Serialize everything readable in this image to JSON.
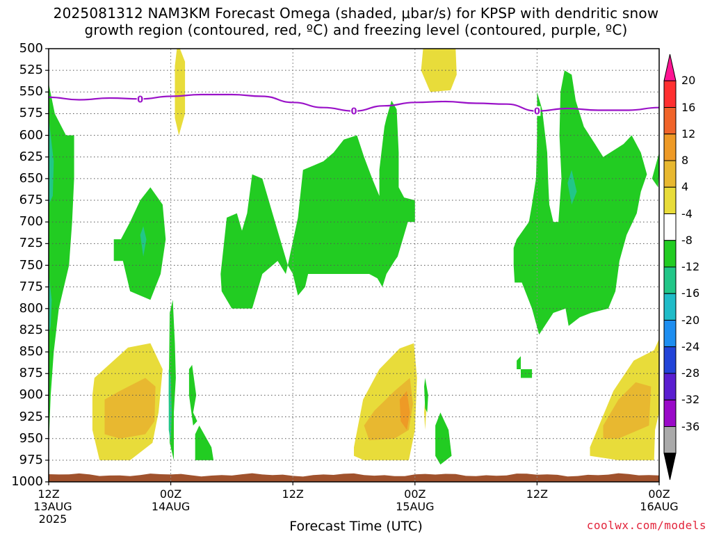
{
  "title_line1": "2025081312 NAM3KM Forecast Omega (shaded, μbar/s) for KPSP with dendritic snow",
  "title_line2": "growth region (contoured, red, ºC) and freezing level (contoured, purple, ºC)",
  "x_axis_label": "Forecast Time (UTC)",
  "credit": "coolwx.com/models",
  "freezing_level_label": "0",
  "chart_data": {
    "type": "heatmap",
    "x_ticks": [
      {
        "hour": 0,
        "line1": "12Z",
        "line2": "13AUG",
        "line3": "2025"
      },
      {
        "hour": 12,
        "line1": "00Z",
        "line2": "14AUG",
        "line3": ""
      },
      {
        "hour": 24,
        "line1": "12Z",
        "line2": "",
        "line3": ""
      },
      {
        "hour": 36,
        "line1": "00Z",
        "line2": "15AUG",
        "line3": ""
      },
      {
        "hour": 48,
        "line1": "12Z",
        "line2": "",
        "line3": ""
      },
      {
        "hour": 60,
        "line1": "00Z",
        "line2": "16AUG",
        "line3": ""
      }
    ],
    "xlim_hours": [
      0,
      60
    ],
    "y_ticks": [
      500,
      525,
      550,
      575,
      600,
      625,
      650,
      675,
      700,
      725,
      750,
      775,
      800,
      825,
      850,
      875,
      900,
      925,
      950,
      975,
      1000
    ],
    "ylim_hpa": [
      500,
      1000
    ],
    "colorbar": {
      "labels": [
        "20",
        "16",
        "12",
        "8",
        "4",
        "-4",
        "-8",
        "-12",
        "-16",
        "-20",
        "-24",
        "-28",
        "-32",
        "-36"
      ],
      "colors": [
        "#ff1493",
        "#ff3030",
        "#f0642a",
        "#ee9a26",
        "#e8b830",
        "#e8dc3a",
        "#ffffff",
        "#22cc22",
        "#22c688",
        "#20bcc8",
        "#1e8ef0",
        "#2244d8",
        "#5a1ed0",
        "#9a0ac8",
        "#aaaaaa",
        "#000000"
      ]
    },
    "freezing_level": {
      "hours": [
        0,
        3,
        6,
        9,
        12,
        15,
        18,
        21,
        24,
        27,
        30,
        33,
        36,
        39,
        42,
        45,
        48,
        51,
        54,
        57,
        60
      ],
      "pressure_hpa": [
        556,
        559,
        557,
        558,
        555,
        553,
        553,
        555,
        562,
        568,
        572,
        566,
        562,
        561,
        563,
        564,
        572,
        569,
        571,
        571,
        568
      ]
    },
    "ground_layer": {
      "from_hpa": 992,
      "to_hpa": 1000,
      "color": "#a0522d"
    },
    "shaded_regions": [
      {
        "category": "4 to 8",
        "points": [
          [
            12.9,
            500
          ],
          [
            13.4,
            515
          ],
          [
            13.4,
            575
          ],
          [
            12.8,
            600
          ],
          [
            12.4,
            580
          ],
          [
            12.4,
            520
          ],
          [
            12.6,
            500
          ]
        ]
      },
      {
        "category": "4 to 8",
        "points": [
          [
            36.8,
            500
          ],
          [
            40.0,
            500
          ],
          [
            40.1,
            530
          ],
          [
            39.5,
            548
          ],
          [
            37.5,
            550
          ],
          [
            36.6,
            525
          ]
        ]
      },
      {
        "category": "4 to 8",
        "points": [
          [
            4.5,
            880
          ],
          [
            7.8,
            845
          ],
          [
            10.0,
            840
          ],
          [
            11.2,
            870
          ],
          [
            10.8,
            920
          ],
          [
            10.2,
            955
          ],
          [
            8.0,
            975
          ],
          [
            5.0,
            975
          ],
          [
            4.3,
            940
          ],
          [
            4.3,
            900
          ]
        ]
      },
      {
        "category": "4 to 8",
        "points": [
          [
            30.0,
            960
          ],
          [
            30.9,
            905
          ],
          [
            32.5,
            870
          ],
          [
            34.5,
            846
          ],
          [
            35.9,
            840
          ],
          [
            36.2,
            880
          ],
          [
            36.0,
            940
          ],
          [
            35.4,
            975
          ],
          [
            33.5,
            975
          ],
          [
            31.0,
            975
          ],
          [
            30.0,
            970
          ]
        ]
      },
      {
        "category": "4 to 8",
        "points": [
          [
            53.2,
            960
          ],
          [
            55.5,
            895
          ],
          [
            57.5,
            860
          ],
          [
            59.5,
            848
          ],
          [
            60,
            835
          ],
          [
            60,
            920
          ],
          [
            59.6,
            940
          ],
          [
            59.5,
            975
          ],
          [
            56.0,
            975
          ],
          [
            53.2,
            970
          ]
        ]
      },
      {
        "category": "4 to 8",
        "points": [
          [
            37.0,
            905
          ],
          [
            37.1,
            920
          ],
          [
            37.0,
            940
          ],
          [
            36.9,
            920
          ]
        ]
      },
      {
        "category": "8 to 12",
        "points": [
          [
            5.5,
            905
          ],
          [
            7.0,
            895
          ],
          [
            9.5,
            880
          ],
          [
            10.5,
            890
          ],
          [
            10.4,
            930
          ],
          [
            9.5,
            945
          ],
          [
            7.0,
            950
          ],
          [
            5.5,
            945
          ]
        ]
      },
      {
        "category": "8 to 12",
        "points": [
          [
            31.0,
            935
          ],
          [
            32.0,
            918
          ],
          [
            34.0,
            895
          ],
          [
            35.5,
            880
          ],
          [
            35.8,
            910
          ],
          [
            35.4,
            940
          ],
          [
            34.0,
            950
          ],
          [
            31.5,
            952
          ]
        ]
      },
      {
        "category": "8 to 12",
        "points": [
          [
            54.5,
            935
          ],
          [
            56.0,
            905
          ],
          [
            57.7,
            885
          ],
          [
            59.2,
            890
          ],
          [
            59.0,
            935
          ],
          [
            56.0,
            950
          ],
          [
            54.5,
            950
          ]
        ]
      },
      {
        "category": "12 to 16",
        "points": [
          [
            34.5,
            905
          ],
          [
            35.2,
            895
          ],
          [
            35.5,
            920
          ],
          [
            35.2,
            940
          ],
          [
            34.6,
            930
          ]
        ]
      },
      {
        "category": "-4 to -8",
        "points": [
          [
            0,
            540
          ],
          [
            0.6,
            575
          ],
          [
            1.7,
            600
          ],
          [
            2.5,
            600
          ],
          [
            2.5,
            650
          ],
          [
            2.3,
            700
          ],
          [
            2.0,
            750
          ],
          [
            1.0,
            800
          ],
          [
            0.5,
            850
          ],
          [
            0.2,
            900
          ],
          [
            0,
            960
          ]
        ]
      },
      {
        "category": "-4 to -8",
        "points": [
          [
            7.1,
            720
          ],
          [
            8.0,
            700
          ],
          [
            9.0,
            675
          ],
          [
            10.0,
            660
          ],
          [
            11.2,
            680
          ],
          [
            11.5,
            720
          ],
          [
            11.0,
            760
          ],
          [
            10.0,
            790
          ],
          [
            8.0,
            780
          ],
          [
            7.3,
            745
          ],
          [
            6.4,
            745
          ],
          [
            6.4,
            720
          ]
        ]
      },
      {
        "category": "-4 to -8",
        "points": [
          [
            11.9,
            805
          ],
          [
            12.2,
            790
          ],
          [
            12.4,
            840
          ],
          [
            12.5,
            880
          ],
          [
            12.3,
            920
          ],
          [
            12.3,
            975
          ],
          [
            11.9,
            955
          ],
          [
            11.8,
            900
          ]
        ]
      },
      {
        "category": "-4 to -8",
        "points": [
          [
            13.8,
            870
          ],
          [
            14.1,
            865
          ],
          [
            14.5,
            900
          ],
          [
            14.2,
            920
          ],
          [
            14.6,
            930
          ],
          [
            14.2,
            935
          ],
          [
            13.8,
            900
          ]
        ]
      },
      {
        "category": "-4 to -8",
        "points": [
          [
            14.4,
            945
          ],
          [
            14.8,
            935
          ],
          [
            16.0,
            960
          ],
          [
            16.2,
            975
          ],
          [
            14.4,
            975
          ]
        ]
      },
      {
        "category": "-4 to -8",
        "points": [
          [
            16.9,
            760
          ],
          [
            17.5,
            695
          ],
          [
            18.5,
            690
          ],
          [
            19.0,
            710
          ],
          [
            19.5,
            690
          ],
          [
            20.0,
            645
          ],
          [
            21.0,
            650
          ],
          [
            22.0,
            690
          ],
          [
            23.5,
            750
          ],
          [
            23.3,
            760
          ],
          [
            22.5,
            745
          ],
          [
            21.0,
            760
          ],
          [
            20.0,
            800
          ],
          [
            18.0,
            800
          ],
          [
            17.0,
            780
          ]
        ]
      },
      {
        "category": "-4 to -8",
        "points": [
          [
            23.5,
            750
          ],
          [
            24.5,
            695
          ],
          [
            25.0,
            640
          ],
          [
            26.0,
            635
          ],
          [
            27.0,
            630
          ],
          [
            28.0,
            620
          ],
          [
            29.0,
            605
          ],
          [
            30.3,
            600
          ],
          [
            31.0,
            625
          ],
          [
            31.8,
            650
          ],
          [
            32.5,
            670
          ],
          [
            32.5,
            640
          ],
          [
            33.0,
            590
          ],
          [
            33.2,
            580
          ],
          [
            33.7,
            560
          ],
          [
            34.2,
            570
          ],
          [
            34.4,
            620
          ],
          [
            34.4,
            660
          ],
          [
            35.3,
            680
          ],
          [
            35.3,
            700
          ],
          [
            34.3,
            740
          ],
          [
            34.0,
            745
          ],
          [
            33.2,
            760
          ],
          [
            32.8,
            775
          ],
          [
            32.3,
            765
          ],
          [
            31.5,
            760
          ],
          [
            28.0,
            760
          ],
          [
            25.5,
            760
          ],
          [
            25.2,
            775
          ],
          [
            24.5,
            785
          ],
          [
            24.0,
            760
          ]
        ]
      },
      {
        "category": "-4 to -8",
        "points": [
          [
            34.3,
            670
          ],
          [
            36.0,
            675
          ],
          [
            36.0,
            700
          ],
          [
            34.3,
            700
          ]
        ]
      },
      {
        "category": "-4 to -8",
        "points": [
          [
            36.9,
            890
          ],
          [
            37.0,
            880
          ],
          [
            37.3,
            900
          ],
          [
            37.2,
            920
          ],
          [
            37.0,
            915
          ]
        ]
      },
      {
        "category": "-4 to -8",
        "points": [
          [
            38.0,
            935
          ],
          [
            38.5,
            920
          ],
          [
            39.3,
            940
          ],
          [
            39.6,
            970
          ],
          [
            38.5,
            980
          ],
          [
            38.0,
            970
          ]
        ]
      },
      {
        "category": "-4 to -8",
        "points": [
          [
            45.7,
            730
          ],
          [
            46.0,
            720
          ],
          [
            47.2,
            700
          ],
          [
            47.5,
            680
          ],
          [
            47.9,
            650
          ],
          [
            48.0,
            600
          ],
          [
            48.0,
            550
          ],
          [
            48.5,
            570
          ],
          [
            49.0,
            620
          ],
          [
            49.1,
            655
          ],
          [
            49.2,
            680
          ],
          [
            49.6,
            700
          ],
          [
            50.1,
            700
          ],
          [
            50.4,
            650
          ],
          [
            50.2,
            600
          ],
          [
            50.3,
            550
          ],
          [
            50.7,
            525
          ],
          [
            51.4,
            530
          ],
          [
            51.8,
            560
          ],
          [
            52.6,
            590
          ],
          [
            53.7,
            610
          ],
          [
            54.5,
            625
          ],
          [
            56.5,
            610
          ],
          [
            57.3,
            600
          ],
          [
            58.2,
            620
          ],
          [
            58.8,
            645
          ],
          [
            58.2,
            665
          ],
          [
            57.8,
            690
          ],
          [
            56.8,
            715
          ],
          [
            56.1,
            745
          ],
          [
            55.7,
            780
          ],
          [
            55.0,
            800
          ],
          [
            53.3,
            805
          ],
          [
            52.2,
            810
          ],
          [
            51.1,
            820
          ],
          [
            50.8,
            800
          ],
          [
            49.6,
            805
          ],
          [
            48.2,
            830
          ],
          [
            47.5,
            800
          ],
          [
            46.5,
            770
          ],
          [
            45.8,
            770
          ],
          [
            45.7,
            750
          ]
        ]
      },
      {
        "category": "-4 to -8",
        "points": [
          [
            59.3,
            650
          ],
          [
            60,
            620
          ],
          [
            60,
            640
          ],
          [
            59.9,
            660
          ]
        ]
      },
      {
        "category": "-4 to -8",
        "points": [
          [
            46.0,
            860
          ],
          [
            46.4,
            855
          ],
          [
            46.4,
            870
          ],
          [
            46.0,
            870
          ]
        ]
      },
      {
        "category": "-4 to -8",
        "points": [
          [
            46.4,
            870
          ],
          [
            47.5,
            870
          ],
          [
            47.5,
            880
          ],
          [
            46.4,
            880
          ]
        ]
      },
      {
        "category": "-8 to -12",
        "points": [
          [
            0,
            580
          ],
          [
            0.5,
            630
          ],
          [
            0.4,
            670
          ],
          [
            0,
            680
          ]
        ]
      },
      {
        "category": "-8 to -12",
        "points": [
          [
            9.0,
            715
          ],
          [
            9.3,
            705
          ],
          [
            9.6,
            720
          ],
          [
            9.3,
            740
          ]
        ]
      },
      {
        "category": "-8 to -12",
        "points": [
          [
            11.8,
            870
          ],
          [
            12.0,
            880
          ],
          [
            12.1,
            920
          ],
          [
            12.0,
            955
          ],
          [
            11.8,
            940
          ]
        ]
      },
      {
        "category": "-8 to -12",
        "points": [
          [
            51.0,
            655
          ],
          [
            51.4,
            640
          ],
          [
            51.9,
            665
          ],
          [
            51.4,
            680
          ]
        ]
      },
      {
        "category": "-8 to -12",
        "points": [
          [
            0,
            760
          ],
          [
            0.3,
            790
          ],
          [
            0.2,
            820
          ],
          [
            0,
            830
          ]
        ]
      }
    ]
  }
}
